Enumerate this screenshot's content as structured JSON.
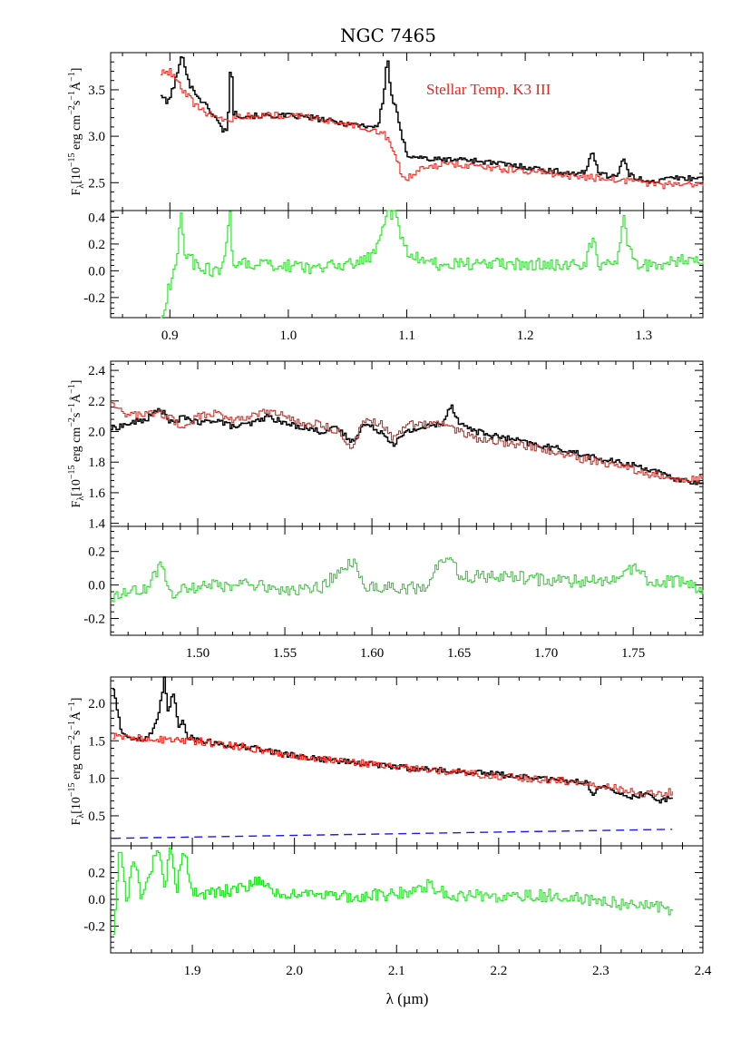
{
  "chart_data": {
    "type": "line",
    "title": "NGC 7465",
    "xlabel": "λ (µm)",
    "colors": {
      "observed": "#000000",
      "model": "#e8241c",
      "residual": "#22e022",
      "continuum": "#1a1ae6"
    },
    "panels": [
      {
        "name": "band-1",
        "xlim": [
          0.85,
          1.35
        ],
        "xticks": [
          "0.9",
          "1.0",
          "1.1",
          "1.2",
          "1.3"
        ],
        "spectrum": {
          "ylabel": "F<sub>λ</sub>[10<sup>−15</sup> erg cm<sup>−2</sup>s<sup>−1</sup>Å<sup>−1</sup>]",
          "ylim": [
            2.2,
            3.9
          ],
          "yticks": [
            "2.5",
            "3.0",
            "3.5"
          ],
          "annotation": "Stellar Temp. K3 III",
          "series": [
            {
              "role": "observed",
              "x": [
                0.892,
                0.897,
                0.903,
                0.907,
                0.91,
                0.916,
                0.925,
                0.935,
                0.945,
                0.948,
                0.951,
                0.953,
                0.96,
                0.98,
                1.0,
                1.02,
                1.04,
                1.06,
                1.075,
                1.08,
                1.083,
                1.086,
                1.09,
                1.095,
                1.1,
                1.12,
                1.15,
                1.18,
                1.2,
                1.22,
                1.24,
                1.25,
                1.256,
                1.262,
                1.27,
                1.278,
                1.282,
                1.287,
                1.295,
                1.305,
                1.315,
                1.32,
                1.35
              ],
              "y": [
                3.45,
                3.35,
                3.55,
                3.75,
                3.88,
                3.55,
                3.4,
                3.25,
                3.05,
                3.1,
                3.88,
                3.25,
                3.22,
                3.22,
                3.22,
                3.2,
                3.15,
                3.12,
                3.1,
                3.45,
                3.88,
                3.45,
                3.3,
                3.0,
                2.8,
                2.75,
                2.75,
                2.7,
                2.67,
                2.63,
                2.6,
                2.6,
                2.85,
                2.6,
                2.57,
                2.6,
                2.77,
                2.58,
                2.54,
                2.52,
                2.52,
                2.55,
                2.55
              ]
            },
            {
              "role": "model",
              "x": [
                0.892,
                0.9,
                0.905,
                0.91,
                0.92,
                0.93,
                0.94,
                0.95,
                0.96,
                0.98,
                1.0,
                1.02,
                1.04,
                1.06,
                1.08,
                1.09,
                1.095,
                1.1,
                1.11,
                1.13,
                1.16,
                1.18,
                1.2,
                1.22,
                1.24,
                1.26,
                1.28,
                1.3,
                1.315,
                1.32,
                1.35
              ],
              "y": [
                3.68,
                3.7,
                3.6,
                3.5,
                3.35,
                3.25,
                3.2,
                3.18,
                3.22,
                3.23,
                3.22,
                3.2,
                3.15,
                3.1,
                3.05,
                2.8,
                2.6,
                2.55,
                2.65,
                2.7,
                2.68,
                2.65,
                2.62,
                2.6,
                2.57,
                2.55,
                2.52,
                2.5,
                2.47,
                2.48,
                2.48
              ]
            }
          ]
        },
        "residual": {
          "ylim": [
            -0.35,
            0.45
          ],
          "yticks": [
            "-0.2",
            "0.0",
            "0.2",
            "0.4"
          ],
          "series": [
            {
              "role": "residual",
              "x": [
                0.892,
                0.895,
                0.898,
                0.902,
                0.905,
                0.908,
                0.912,
                0.92,
                0.935,
                0.945,
                0.95,
                0.952,
                0.955,
                0.965,
                0.99,
                1.02,
                1.05,
                1.07,
                1.078,
                1.082,
                1.086,
                1.09,
                1.095,
                1.1,
                1.12,
                1.15,
                1.18,
                1.2,
                1.23,
                1.25,
                1.256,
                1.262,
                1.27,
                1.278,
                1.282,
                1.287,
                1.295,
                1.305,
                1.315,
                1.32,
                1.35
              ],
              "y": [
                -0.35,
                -0.25,
                -0.15,
                -0.05,
                0.05,
                0.45,
                0.15,
                0.05,
                0.0,
                0.02,
                0.45,
                0.1,
                0.05,
                0.05,
                0.05,
                0.02,
                0.05,
                0.1,
                0.3,
                0.45,
                0.4,
                0.45,
                0.25,
                0.15,
                0.05,
                0.05,
                0.05,
                0.05,
                0.05,
                0.03,
                0.25,
                0.05,
                0.05,
                0.1,
                0.42,
                0.15,
                0.05,
                0.03,
                0.05,
                0.08,
                0.08
              ]
            }
          ]
        }
      },
      {
        "name": "band-2",
        "xlim": [
          1.45,
          1.79
        ],
        "xticks": [
          "1.50",
          "1.55",
          "1.60",
          "1.65",
          "1.70",
          "1.75"
        ],
        "spectrum": {
          "ylabel": "F<sub>λ</sub>[10<sup>−15</sup> erg cm<sup>−2</sup>s<sup>−1</sup>Å<sup>−1</sup>]",
          "ylim": [
            1.38,
            2.46
          ],
          "yticks": [
            "1.4",
            "1.6",
            "1.8",
            "2.0",
            "2.2",
            "2.4"
          ],
          "series": [
            {
              "role": "observed",
              "x": [
                1.45,
                1.46,
                1.47,
                1.478,
                1.485,
                1.492,
                1.5,
                1.51,
                1.52,
                1.53,
                1.54,
                1.55,
                1.56,
                1.57,
                1.58,
                1.588,
                1.595,
                1.605,
                1.612,
                1.62,
                1.63,
                1.64,
                1.645,
                1.65,
                1.66,
                1.67,
                1.68,
                1.69,
                1.7,
                1.71,
                1.72,
                1.73,
                1.74,
                1.75,
                1.76,
                1.77,
                1.78,
                1.79
              ],
              "y": [
                2.02,
                2.05,
                2.08,
                2.15,
                2.05,
                2.1,
                2.05,
                2.08,
                2.03,
                2.05,
                2.1,
                2.05,
                2.03,
                2.0,
                2.02,
                1.93,
                2.05,
                2.0,
                1.92,
                2.0,
                2.03,
                2.05,
                2.18,
                2.05,
                2.0,
                1.97,
                1.95,
                1.92,
                1.9,
                1.88,
                1.85,
                1.82,
                1.8,
                1.78,
                1.75,
                1.7,
                1.68,
                1.65
              ]
            },
            {
              "role": "model",
              "x": [
                1.45,
                1.46,
                1.47,
                1.478,
                1.485,
                1.49,
                1.5,
                1.51,
                1.52,
                1.53,
                1.54,
                1.55,
                1.56,
                1.57,
                1.58,
                1.588,
                1.595,
                1.605,
                1.612,
                1.62,
                1.63,
                1.64,
                1.65,
                1.66,
                1.67,
                1.68,
                1.69,
                1.7,
                1.71,
                1.72,
                1.73,
                1.74,
                1.75,
                1.76,
                1.77,
                1.78,
                1.79
              ],
              "y": [
                2.2,
                2.1,
                2.12,
                2.12,
                2.08,
                2.02,
                2.1,
                2.12,
                2.08,
                2.1,
                2.13,
                2.1,
                2.05,
                2.05,
                2.0,
                1.88,
                2.08,
                2.05,
                1.95,
                2.05,
                2.05,
                2.05,
                2.0,
                1.95,
                1.93,
                1.92,
                1.9,
                1.88,
                1.85,
                1.82,
                1.8,
                1.78,
                1.75,
                1.72,
                1.7,
                1.68,
                1.7
              ]
            }
          ]
        },
        "residual": {
          "ylim": [
            -0.3,
            0.35
          ],
          "yticks": [
            "-0.2",
            "0.0",
            "0.2"
          ],
          "series": [
            {
              "role": "residual",
              "x": [
                1.45,
                1.46,
                1.47,
                1.478,
                1.485,
                1.495,
                1.51,
                1.53,
                1.55,
                1.57,
                1.588,
                1.595,
                1.61,
                1.63,
                1.643,
                1.65,
                1.66,
                1.68,
                1.7,
                1.72,
                1.74,
                1.75,
                1.76,
                1.78,
                1.79
              ],
              "y": [
                -0.08,
                -0.05,
                -0.03,
                0.12,
                -0.05,
                -0.02,
                0.0,
                0.0,
                -0.03,
                -0.02,
                0.15,
                0.0,
                -0.02,
                -0.02,
                0.2,
                0.05,
                0.05,
                0.05,
                0.03,
                0.02,
                0.03,
                0.1,
                0.02,
                0.03,
                -0.05
              ]
            }
          ]
        }
      },
      {
        "name": "band-3",
        "xlim": [
          1.82,
          2.4
        ],
        "xticks": [
          "1.9",
          "2.0",
          "2.1",
          "2.2",
          "2.3",
          "2.4"
        ],
        "spectrum": {
          "ylabel": "F<sub>λ</sub>[10<sup>−15</sup> erg cm<sup>−2</sup>s<sup>−1</sup>Å<sup>−1</sup>]",
          "ylim": [
            0.1,
            2.35
          ],
          "yticks": [
            "0.5",
            "1.0",
            "1.5",
            "2.0"
          ],
          "series": [
            {
              "role": "observed",
              "x": [
                1.822,
                1.83,
                1.84,
                1.85,
                1.86,
                1.866,
                1.872,
                1.876,
                1.88,
                1.886,
                1.89,
                1.895,
                1.91,
                1.93,
                1.96,
                2.0,
                2.05,
                2.1,
                2.15,
                2.2,
                2.25,
                2.285,
                2.292,
                2.3,
                2.32,
                2.325,
                2.34,
                2.36,
                2.37
              ],
              "y": [
                2.2,
                1.6,
                1.55,
                1.5,
                1.6,
                1.8,
                2.35,
                1.8,
                2.2,
                1.7,
                1.8,
                1.55,
                1.5,
                1.45,
                1.4,
                1.3,
                1.22,
                1.15,
                1.1,
                1.05,
                0.98,
                0.95,
                0.8,
                0.88,
                0.82,
                0.72,
                0.8,
                0.7,
                0.76
              ]
            },
            {
              "role": "model",
              "x": [
                1.822,
                1.9,
                1.96,
                2.0,
                2.05,
                2.1,
                2.15,
                2.2,
                2.25,
                2.28,
                2.29,
                2.292,
                2.3,
                2.32,
                2.34,
                2.36,
                2.37
              ],
              "y": [
                1.55,
                1.5,
                1.4,
                1.3,
                1.22,
                1.15,
                1.08,
                1.03,
                0.98,
                0.95,
                0.92,
                0.88,
                0.92,
                0.85,
                0.8,
                0.8,
                0.82
              ]
            },
            {
              "role": "continuum",
              "x": [
                1.822,
                2.37
              ],
              "y": [
                0.2,
                0.32
              ]
            }
          ]
        },
        "residual": {
          "ylim": [
            -0.4,
            0.4
          ],
          "yticks": [
            "-0.2",
            "0.0",
            "0.2"
          ],
          "series": [
            {
              "role": "residual",
              "x": [
                1.822,
                1.828,
                1.835,
                1.842,
                1.85,
                1.858,
                1.866,
                1.872,
                1.878,
                1.884,
                1.89,
                1.9,
                1.92,
                1.95,
                1.96,
                1.98,
                2.0,
                2.05,
                2.1,
                2.13,
                2.15,
                2.2,
                2.25,
                2.3,
                2.35,
                2.37
              ],
              "y": [
                -0.25,
                0.4,
                0.0,
                0.3,
                0.0,
                0.2,
                0.4,
                0.1,
                0.4,
                0.05,
                0.4,
                0.05,
                0.05,
                0.08,
                0.15,
                0.05,
                0.03,
                0.02,
                0.04,
                0.1,
                0.03,
                0.02,
                0.03,
                -0.02,
                -0.05,
                -0.08
              ]
            }
          ]
        }
      }
    ]
  }
}
